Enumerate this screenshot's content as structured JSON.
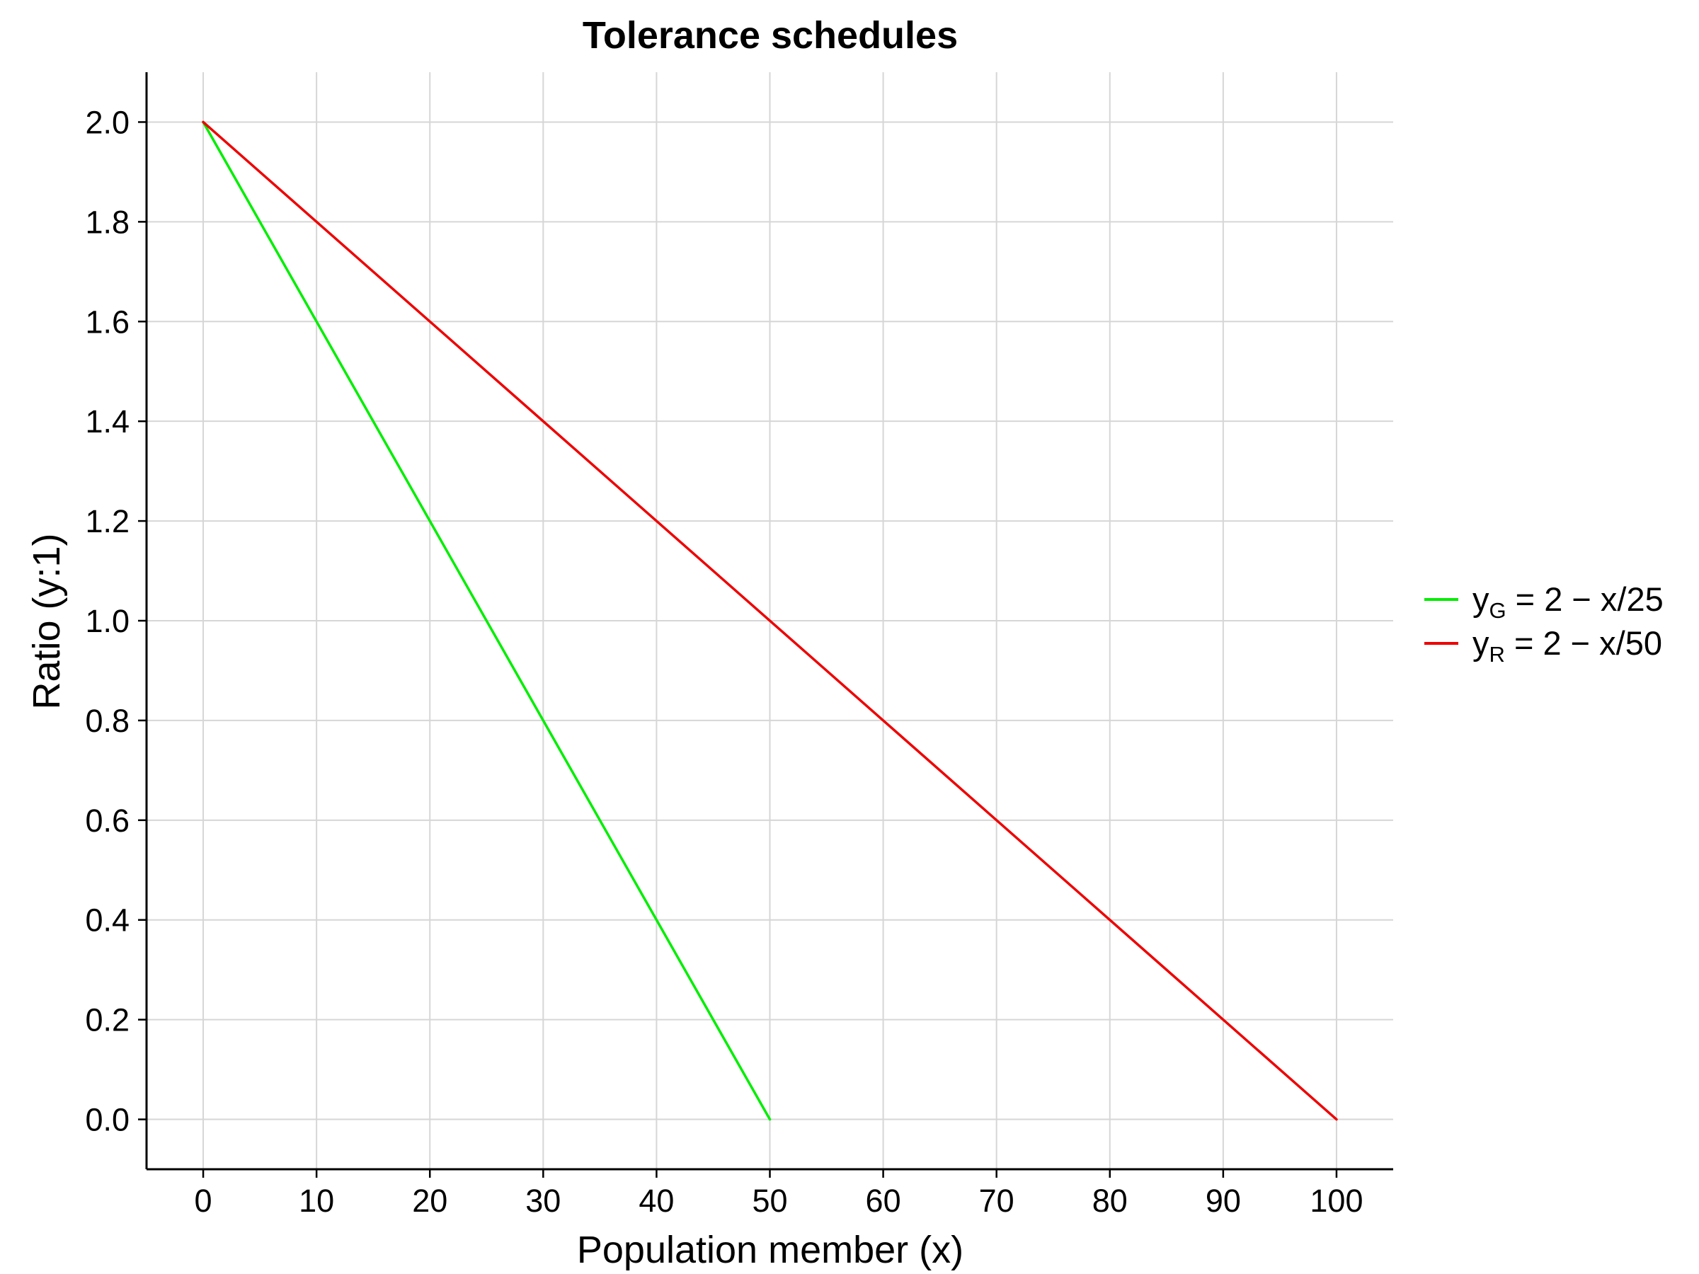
{
  "chart_data": {
    "type": "line",
    "title": "Tolerance schedules",
    "xlabel": "Population member (x)",
    "ylabel": "Ratio (y:1)",
    "xlim": [
      -5,
      105
    ],
    "ylim": [
      -0.1,
      2.1
    ],
    "xticks": [
      0,
      10,
      20,
      30,
      40,
      50,
      60,
      70,
      80,
      90,
      100
    ],
    "yticks": [
      0.0,
      0.2,
      0.4,
      0.6,
      0.8,
      1.0,
      1.2,
      1.4,
      1.6,
      1.8,
      2.0
    ],
    "xtick_labels": [
      "0",
      "10",
      "20",
      "30",
      "40",
      "50",
      "60",
      "70",
      "80",
      "90",
      "100"
    ],
    "ytick_labels": [
      "0.0",
      "0.2",
      "0.4",
      "0.6",
      "0.8",
      "1.0",
      "1.2",
      "1.4",
      "1.6",
      "1.8",
      "2.0"
    ],
    "grid": true,
    "legend_position": "right",
    "series": [
      {
        "legend_main": "y",
        "legend_sub": "G",
        "legend_rest": " = 2 − x/25",
        "color": "#00ee00",
        "x": [
          0,
          50
        ],
        "y": [
          2.0,
          0.0
        ]
      },
      {
        "legend_main": "y",
        "legend_sub": "R",
        "legend_rest": " = 2 − x/50",
        "color": "#ee0000",
        "x": [
          0,
          100
        ],
        "y": [
          2.0,
          0.0
        ]
      }
    ]
  }
}
